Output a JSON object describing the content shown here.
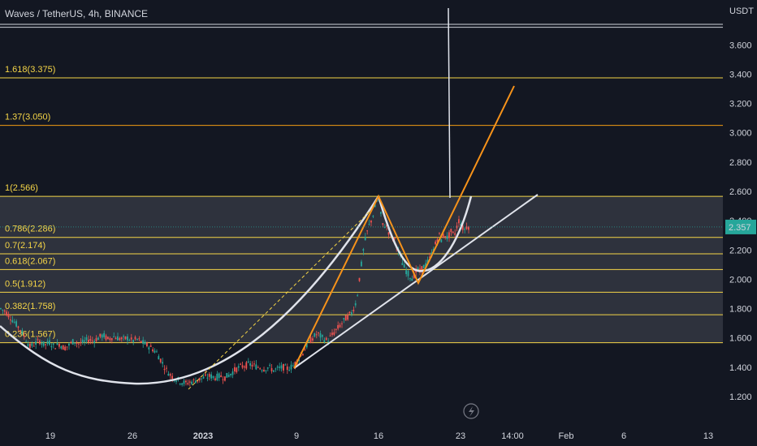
{
  "header": {
    "title": "Waves / TetherUS, 4h, BINANCE"
  },
  "colors": {
    "background": "#131722",
    "up": "#26a69a",
    "down": "#ef5350",
    "fib": "#f5d547",
    "fib_orange": "#f39c12",
    "pattern": "#ffffff",
    "trend": "#f7931a",
    "price_badge": "#26a69a"
  },
  "chart_data": {
    "type": "candlestick",
    "title": "Waves / TetherUS, 4h, BINANCE",
    "y_axis": {
      "unit_label": "USDT",
      "range": [
        1.1,
        3.85
      ],
      "ticks": [
        "1.200",
        "1.400",
        "1.600",
        "1.800",
        "2.000",
        "2.200",
        "2.400",
        "2.600",
        "2.800",
        "3.000",
        "3.200",
        "3.400",
        "3.600"
      ]
    },
    "x_axis": {
      "ticks": [
        "19",
        "26",
        "2023",
        "9",
        "16",
        "23",
        "14:00",
        "Feb",
        "6",
        "13"
      ]
    },
    "last_price": "2.357",
    "fib_levels": [
      {
        "label": "1.618(3.375)",
        "value": 3.375,
        "color": "#f5d547"
      },
      {
        "label": "1.37(3.050)",
        "value": 3.05,
        "color": "#f39c12"
      },
      {
        "label": "1(2.566)",
        "value": 2.566,
        "color": "#f5d547"
      },
      {
        "label": "0.786(2.286)",
        "value": 2.286,
        "color": "#f5d547"
      },
      {
        "label": "0.7(2.174)",
        "value": 2.174,
        "color": "#f5d547"
      },
      {
        "label": "0.618(2.067)",
        "value": 2.067,
        "color": "#f5d547"
      },
      {
        "label": "0.5(1.912)",
        "value": 1.912,
        "color": "#f5d547"
      },
      {
        "label": "0.382(1.758)",
        "value": 1.758,
        "color": "#f5d547"
      },
      {
        "label": "0.236(1.567)",
        "value": 1.567,
        "color": "#f5d547"
      }
    ],
    "top_lines": [
      3.74,
      3.72
    ],
    "price_path": [
      [
        0,
        1.8
      ],
      [
        6,
        1.78
      ],
      [
        12,
        1.74
      ],
      [
        18,
        1.7
      ],
      [
        24,
        1.66
      ],
      [
        30,
        1.6
      ],
      [
        36,
        1.54
      ],
      [
        42,
        1.56
      ],
      [
        48,
        1.58
      ],
      [
        54,
        1.55
      ],
      [
        60,
        1.57
      ],
      [
        66,
        1.54
      ],
      [
        72,
        1.56
      ],
      [
        78,
        1.53
      ],
      [
        84,
        1.55
      ],
      [
        90,
        1.58
      ],
      [
        96,
        1.56
      ],
      [
        102,
        1.57
      ],
      [
        108,
        1.59
      ],
      [
        114,
        1.58
      ],
      [
        120,
        1.6
      ],
      [
        126,
        1.62
      ],
      [
        132,
        1.59
      ],
      [
        138,
        1.61
      ],
      [
        144,
        1.6
      ],
      [
        150,
        1.59
      ],
      [
        156,
        1.6
      ],
      [
        162,
        1.58
      ],
      [
        168,
        1.59
      ],
      [
        174,
        1.57
      ],
      [
        180,
        1.55
      ],
      [
        186,
        1.53
      ],
      [
        192,
        1.5
      ],
      [
        198,
        1.44
      ],
      [
        204,
        1.38
      ],
      [
        210,
        1.34
      ],
      [
        216,
        1.32
      ],
      [
        222,
        1.3
      ],
      [
        228,
        1.29
      ],
      [
        234,
        1.3
      ],
      [
        240,
        1.31
      ],
      [
        246,
        1.32
      ],
      [
        252,
        1.33
      ],
      [
        258,
        1.34
      ],
      [
        264,
        1.33
      ],
      [
        270,
        1.34
      ],
      [
        276,
        1.33
      ],
      [
        282,
        1.35
      ],
      [
        288,
        1.38
      ],
      [
        294,
        1.4
      ],
      [
        300,
        1.41
      ],
      [
        306,
        1.42
      ],
      [
        312,
        1.41
      ],
      [
        318,
        1.4
      ],
      [
        324,
        1.39
      ],
      [
        330,
        1.4
      ],
      [
        336,
        1.38
      ],
      [
        342,
        1.39
      ],
      [
        348,
        1.4
      ],
      [
        354,
        1.39
      ],
      [
        360,
        1.41
      ],
      [
        366,
        1.45
      ],
      [
        372,
        1.5
      ],
      [
        378,
        1.56
      ],
      [
        384,
        1.6
      ],
      [
        390,
        1.63
      ],
      [
        396,
        1.6
      ],
      [
        402,
        1.58
      ],
      [
        408,
        1.62
      ],
      [
        414,
        1.66
      ],
      [
        420,
        1.7
      ],
      [
        426,
        1.74
      ],
      [
        432,
        1.77
      ],
      [
        438,
        1.85
      ],
      [
        441,
        1.98
      ],
      [
        444,
        2.1
      ],
      [
        447,
        2.22
      ],
      [
        450,
        2.3
      ],
      [
        453,
        2.36
      ],
      [
        456,
        2.4
      ],
      [
        459,
        2.45
      ],
      [
        462,
        2.52
      ],
      [
        465,
        2.56
      ],
      [
        468,
        2.44
      ],
      [
        471,
        2.35
      ],
      [
        474,
        2.38
      ],
      [
        477,
        2.33
      ],
      [
        480,
        2.3
      ],
      [
        483,
        2.28
      ],
      [
        486,
        2.26
      ],
      [
        489,
        2.2
      ],
      [
        492,
        2.15
      ],
      [
        495,
        2.1
      ],
      [
        498,
        2.07
      ],
      [
        501,
        2.04
      ],
      [
        504,
        2.02
      ],
      [
        507,
        2.01
      ],
      [
        510,
        2.04
      ],
      [
        513,
        2.07
      ],
      [
        516,
        2.05
      ],
      [
        519,
        2.08
      ],
      [
        522,
        2.09
      ],
      [
        525,
        2.11
      ],
      [
        528,
        2.14
      ],
      [
        531,
        2.18
      ],
      [
        534,
        2.22
      ],
      [
        537,
        2.27
      ],
      [
        540,
        2.3
      ],
      [
        543,
        2.26
      ],
      [
        546,
        2.32
      ],
      [
        549,
        2.28
      ],
      [
        552,
        2.3
      ],
      [
        555,
        2.33
      ],
      [
        558,
        2.29
      ],
      [
        561,
        2.35
      ],
      [
        564,
        2.4
      ],
      [
        567,
        2.38
      ],
      [
        570,
        2.33
      ],
      [
        573,
        2.36
      ],
      [
        576,
        2.36
      ]
    ]
  }
}
